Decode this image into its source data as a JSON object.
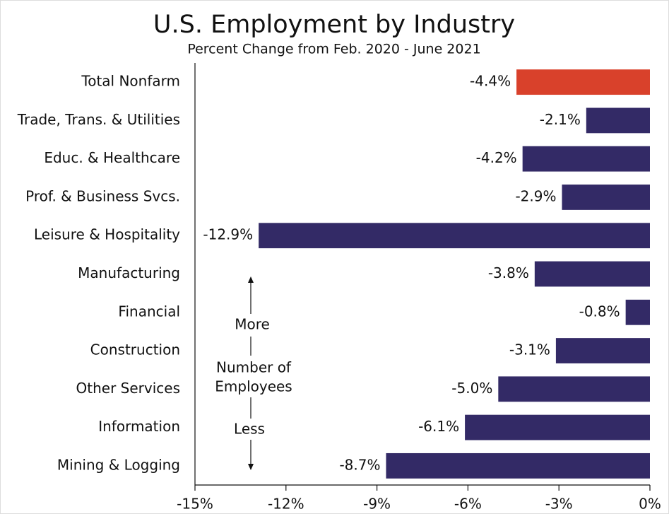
{
  "chart_data": {
    "type": "hbar",
    "title": "U.S. Employment by Industry",
    "subtitle": "Percent Change from Feb. 2020 - June 2021",
    "categories": [
      "Total Nonfarm",
      "Trade, Trans. & Utilities",
      "Educ. & Healthcare",
      "Prof. & Business Svcs.",
      "Leisure & Hospitality",
      "Manufacturing",
      "Financial",
      "Construction",
      "Other Services",
      "Information",
      "Mining & Logging"
    ],
    "values": [
      -4.4,
      -2.1,
      -4.2,
      -2.9,
      -12.9,
      -3.8,
      -0.8,
      -3.1,
      -5.0,
      -6.1,
      -8.7
    ],
    "value_labels": [
      "-4.4%",
      "-2.1%",
      "-4.2%",
      "-2.9%",
      "-12.9%",
      "-3.8%",
      "-0.8%",
      "-3.1%",
      "-5.0%",
      "-6.1%",
      "-8.7%"
    ],
    "colors": [
      "#d9412b",
      "#332a66",
      "#332a66",
      "#332a66",
      "#332a66",
      "#332a66",
      "#332a66",
      "#332a66",
      "#332a66",
      "#332a66",
      "#332a66"
    ],
    "xlim": [
      -15,
      0
    ],
    "xticks": [
      {
        "value": -15,
        "label": "-15%"
      },
      {
        "value": -12,
        "label": "-12%"
      },
      {
        "value": -9,
        "label": "-9%"
      },
      {
        "value": -6,
        "label": "-6%"
      },
      {
        "value": -3,
        "label": "-3%"
      },
      {
        "value": 0,
        "label": "0%"
      }
    ],
    "annotations": {
      "top": "More",
      "middle": [
        "Number of",
        "Employees"
      ],
      "bottom": "Less"
    }
  }
}
